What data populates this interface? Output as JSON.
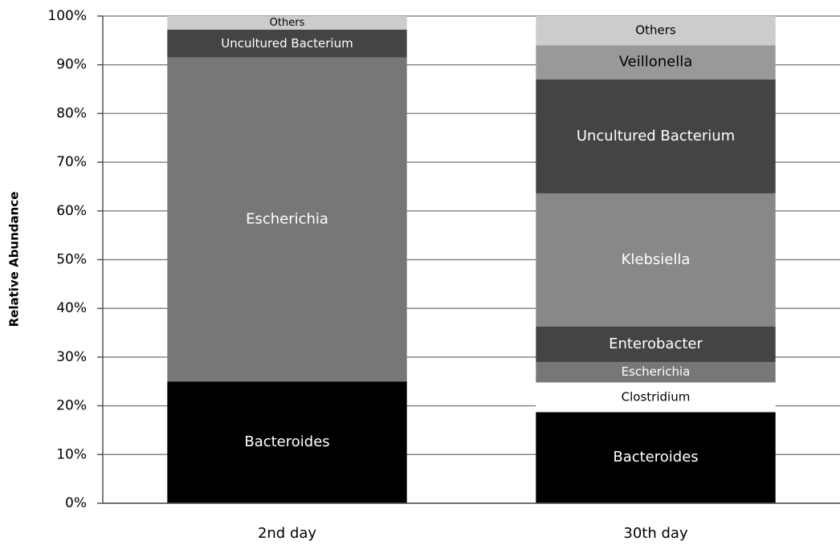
{
  "chart_data": {
    "type": "stacked_bar",
    "y_label": "Relative Abundance",
    "categories": [
      "2nd day",
      "30th day"
    ],
    "series": [
      {
        "name": "Bacteroides",
        "color": "#000000",
        "values": [
          25,
          18.7
        ]
      },
      {
        "name": "Clostridium",
        "color": "#ffffff",
        "values": [
          null,
          6.1
        ]
      },
      {
        "name": "Escherichia",
        "color": "#777777",
        "values": [
          66.5,
          4.2
        ]
      },
      {
        "name": "Enterobacter",
        "color": "#444444",
        "values": [
          null,
          7.3
        ]
      },
      {
        "name": "Klebsiella",
        "color": "#888888",
        "values": [
          null,
          27.3
        ]
      },
      {
        "name": "Uncultured Bacterium",
        "color": "#444444",
        "values": [
          5.7,
          23.4
        ]
      },
      {
        "name": "Veillonella",
        "color": "#999999",
        "values": [
          null,
          7
        ]
      },
      {
        "name": "Others",
        "color": "#cccccc",
        "values": [
          2.8,
          6
        ]
      }
    ],
    "ylim": [
      0,
      100
    ],
    "yticks": [
      {
        "value": 0,
        "label": "0%"
      },
      {
        "value": 10,
        "label": "10%"
      },
      {
        "value": 20,
        "label": "20%"
      },
      {
        "value": 30,
        "label": "30%"
      },
      {
        "value": 40,
        "label": "40%"
      },
      {
        "value": 50,
        "label": "50%"
      },
      {
        "value": 60,
        "label": "60%"
      },
      {
        "value": 70,
        "label": "70%"
      },
      {
        "value": 80,
        "label": "80%"
      },
      {
        "value": 90,
        "label": "90%"
      },
      {
        "value": 100,
        "label": "100%"
      }
    ],
    "grid": true
  }
}
